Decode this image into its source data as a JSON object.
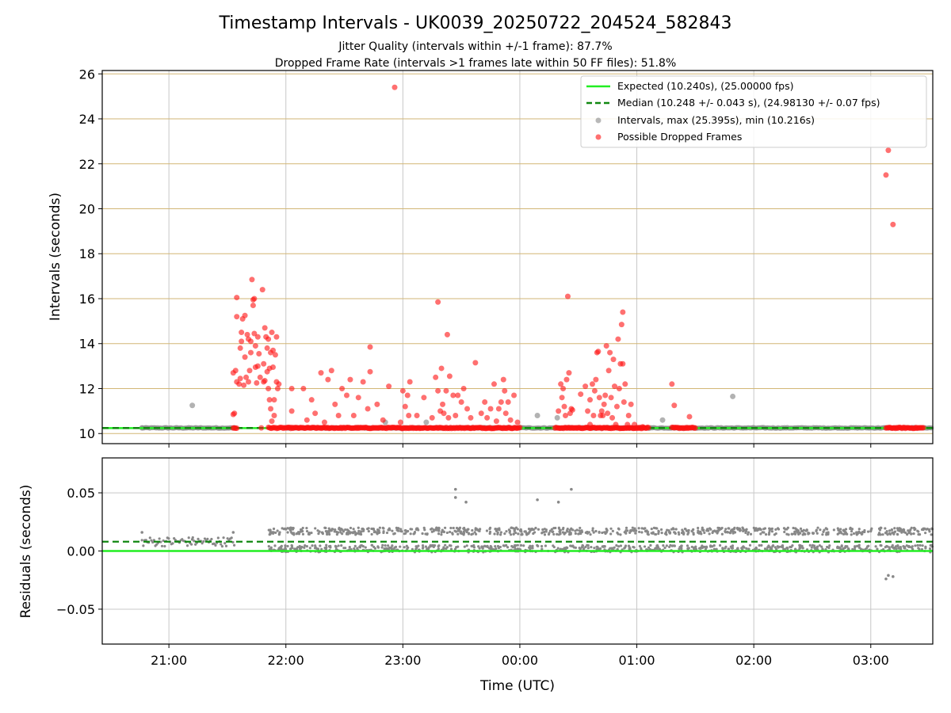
{
  "title": "Timestamp Intervals - UK0039_20250722_204524_582843",
  "subtitle_1": "Jitter Quality (intervals within +/-1 frame): 87.7%",
  "subtitle_2": "Dropped Frame Rate (intervals >1 frames late within 50 FF files): 51.8%",
  "colors": {
    "expected": "#22ee22",
    "median": "#118811",
    "intervals": "#888888",
    "dropped": "#ff1111",
    "hgrid_top": "#d2b675",
    "grid": "#c8c8c8"
  },
  "chart_data": [
    {
      "type": "scatter",
      "panel": "intervals",
      "xlabel": "",
      "ylabel": "Intervals (seconds)",
      "xlim_hours": [
        20.43,
        27.53
      ],
      "ylim": [
        9.55,
        26.15
      ],
      "yticks": [
        10,
        12,
        14,
        16,
        18,
        20,
        22,
        24,
        26
      ],
      "grid": "horizontal gold lines, vertical gray lines",
      "legend_placement": "top-right",
      "expected_value": 10.24,
      "median_value": 10.248,
      "legend": [
        "Expected (10.240s), (25.00000 fps)",
        "Median (10.248 +/- 0.043 s), (24.98130 +/- 0.07 fps)",
        "Intervals, max (25.395s), min (10.216s)",
        "Possible Dropped Frames"
      ],
      "series": [
        {
          "name": "Intervals, max (25.395s), min (10.216s)",
          "baseline_band": [
            [
              20.77,
              21.57
            ],
            [
              22.0,
              27.53
            ]
          ],
          "baseline_value": 10.25,
          "points": [
            [
              20.77,
              10.25
            ],
            [
              21.2,
              11.25
            ],
            [
              22.85,
              10.5
            ],
            [
              23.2,
              10.5
            ],
            [
              24.15,
              10.8
            ],
            [
              24.32,
              10.7
            ],
            [
              25.22,
              10.6
            ],
            [
              25.82,
              11.65
            ]
          ]
        },
        {
          "name": "Possible Dropped Frames",
          "band_ranges": [
            [
              21.55,
              21.58
            ],
            [
              21.85,
              24.0
            ],
            [
              24.3,
              25.1
            ],
            [
              25.3,
              25.5
            ],
            [
              27.13,
              27.45
            ]
          ],
          "band_value": 10.25,
          "points": [
            [
              21.55,
              10.85
            ],
            [
              21.56,
              10.9
            ],
            [
              21.55,
              12.7
            ],
            [
              21.57,
              12.8
            ],
            [
              21.58,
              12.3
            ],
            [
              21.58,
              15.2
            ],
            [
              21.58,
              16.05
            ],
            [
              21.6,
              12.2
            ],
            [
              21.61,
              12.45
            ],
            [
              21.61,
              13.8
            ],
            [
              21.62,
              14.1
            ],
            [
              21.62,
              14.5
            ],
            [
              21.63,
              15.1
            ],
            [
              21.64,
              12.15
            ],
            [
              21.65,
              13.4
            ],
            [
              21.65,
              15.25
            ],
            [
              21.66,
              12.5
            ],
            [
              21.67,
              14.4
            ],
            [
              21.68,
              14.2
            ],
            [
              21.68,
              12.3
            ],
            [
              21.69,
              12.8
            ],
            [
              21.7,
              14.1
            ],
            [
              21.7,
              13.6
            ],
            [
              21.71,
              16.85
            ],
            [
              21.72,
              15.7
            ],
            [
              21.72,
              15.95
            ],
            [
              21.73,
              16.0
            ],
            [
              21.73,
              14.45
            ],
            [
              21.74,
              13.9
            ],
            [
              21.74,
              12.95
            ],
            [
              21.75,
              12.25
            ],
            [
              21.76,
              13.0
            ],
            [
              21.76,
              14.3
            ],
            [
              21.77,
              13.55
            ],
            [
              21.78,
              12.5
            ],
            [
              21.79,
              10.25
            ],
            [
              21.8,
              16.4
            ],
            [
              21.81,
              12.3
            ],
            [
              21.81,
              13.1
            ],
            [
              21.82,
              14.7
            ],
            [
              21.82,
              12.35
            ],
            [
              21.83,
              14.3
            ],
            [
              21.84,
              13.8
            ],
            [
              21.84,
              12.75
            ],
            [
              21.85,
              14.2
            ],
            [
              21.85,
              12.0
            ],
            [
              21.86,
              11.5
            ],
            [
              21.86,
              12.9
            ],
            [
              21.87,
              13.6
            ],
            [
              21.87,
              11.1
            ],
            [
              21.88,
              10.55
            ],
            [
              21.88,
              14.5
            ],
            [
              21.89,
              13.7
            ],
            [
              21.89,
              12.95
            ],
            [
              21.9,
              11.5
            ],
            [
              21.9,
              10.8
            ],
            [
              21.91,
              13.5
            ],
            [
              21.92,
              12.3
            ],
            [
              21.92,
              14.3
            ],
            [
              21.93,
              12.0
            ],
            [
              21.94,
              12.2
            ],
            [
              22.05,
              11.0
            ],
            [
              22.05,
              12.0
            ],
            [
              22.15,
              12.0
            ],
            [
              22.18,
              10.6
            ],
            [
              22.22,
              11.5
            ],
            [
              22.25,
              10.9
            ],
            [
              22.3,
              12.7
            ],
            [
              22.33,
              10.5
            ],
            [
              22.36,
              12.4
            ],
            [
              22.39,
              12.8
            ],
            [
              22.42,
              11.3
            ],
            [
              22.45,
              10.8
            ],
            [
              22.48,
              12.0
            ],
            [
              22.52,
              11.7
            ],
            [
              22.55,
              12.4
            ],
            [
              22.58,
              10.8
            ],
            [
              22.62,
              11.6
            ],
            [
              22.66,
              12.3
            ],
            [
              22.7,
              11.1
            ],
            [
              22.72,
              12.75
            ],
            [
              22.72,
              13.85
            ],
            [
              22.78,
              11.3
            ],
            [
              22.83,
              10.6
            ],
            [
              22.88,
              12.1
            ],
            [
              22.93,
              25.4
            ],
            [
              22.98,
              10.5
            ],
            [
              23.0,
              11.9
            ],
            [
              23.02,
              11.2
            ],
            [
              23.05,
              10.8
            ],
            [
              23.04,
              11.7
            ],
            [
              23.06,
              12.3
            ],
            [
              23.12,
              10.8
            ],
            [
              23.18,
              11.6
            ],
            [
              23.25,
              10.7
            ],
            [
              23.28,
              12.5
            ],
            [
              23.3,
              15.85
            ],
            [
              23.3,
              11.9
            ],
            [
              23.32,
              11.0
            ],
            [
              23.33,
              12.9
            ],
            [
              23.34,
              11.3
            ],
            [
              23.35,
              10.9
            ],
            [
              23.37,
              11.9
            ],
            [
              23.38,
              14.4
            ],
            [
              23.39,
              10.7
            ],
            [
              23.4,
              12.55
            ],
            [
              23.43,
              11.7
            ],
            [
              23.45,
              10.8
            ],
            [
              23.47,
              11.7
            ],
            [
              23.5,
              11.4
            ],
            [
              23.52,
              12.0
            ],
            [
              23.55,
              11.1
            ],
            [
              23.58,
              10.7
            ],
            [
              23.62,
              13.15
            ],
            [
              23.67,
              10.9
            ],
            [
              23.7,
              11.4
            ],
            [
              23.72,
              10.7
            ],
            [
              23.75,
              11.1
            ],
            [
              23.78,
              12.2
            ],
            [
              23.8,
              10.55
            ],
            [
              23.82,
              11.1
            ],
            [
              23.84,
              11.4
            ],
            [
              23.86,
              12.4
            ],
            [
              23.87,
              11.9
            ],
            [
              23.88,
              10.9
            ],
            [
              23.9,
              11.4
            ],
            [
              23.92,
              10.6
            ],
            [
              23.95,
              11.7
            ],
            [
              23.98,
              10.5
            ],
            [
              24.33,
              11.0
            ],
            [
              24.35,
              12.2
            ],
            [
              24.36,
              11.6
            ],
            [
              24.37,
              12.0
            ],
            [
              24.38,
              11.2
            ],
            [
              24.39,
              10.8
            ],
            [
              24.4,
              12.4
            ],
            [
              24.41,
              16.1
            ],
            [
              24.42,
              12.7
            ],
            [
              24.43,
              10.9
            ],
            [
              24.44,
              11.1
            ],
            [
              24.45,
              11.05
            ],
            [
              24.52,
              11.75
            ],
            [
              24.56,
              12.1
            ],
            [
              24.58,
              11.0
            ],
            [
              24.6,
              11.5
            ],
            [
              24.6,
              10.4
            ],
            [
              24.62,
              12.2
            ],
            [
              24.63,
              10.8
            ],
            [
              24.64,
              11.9
            ],
            [
              24.65,
              12.4
            ],
            [
              24.66,
              13.6
            ],
            [
              24.67,
              13.65
            ],
            [
              24.68,
              11.6
            ],
            [
              24.69,
              10.8
            ],
            [
              24.7,
              11.0
            ],
            [
              24.71,
              10.8
            ],
            [
              24.72,
              11.3
            ],
            [
              24.73,
              11.7
            ],
            [
              24.74,
              13.9
            ],
            [
              24.75,
              10.9
            ],
            [
              24.76,
              12.8
            ],
            [
              24.77,
              13.6
            ],
            [
              24.78,
              11.6
            ],
            [
              24.79,
              10.7
            ],
            [
              24.8,
              13.3
            ],
            [
              24.81,
              12.1
            ],
            [
              24.82,
              10.4
            ],
            [
              24.83,
              11.2
            ],
            [
              24.84,
              14.2
            ],
            [
              24.85,
              12.0
            ],
            [
              24.86,
              13.1
            ],
            [
              24.87,
              14.85
            ],
            [
              24.88,
              15.4
            ],
            [
              24.88,
              13.1
            ],
            [
              24.89,
              11.4
            ],
            [
              24.9,
              12.2
            ],
            [
              24.92,
              10.4
            ],
            [
              24.93,
              10.8
            ],
            [
              24.95,
              11.3
            ],
            [
              24.98,
              10.4
            ],
            [
              25.05,
              10.3
            ],
            [
              25.3,
              12.2
            ],
            [
              25.32,
              11.25
            ],
            [
              25.45,
              10.75
            ],
            [
              27.13,
              21.5
            ],
            [
              27.15,
              22.6
            ],
            [
              27.19,
              19.3
            ]
          ]
        }
      ]
    },
    {
      "type": "scatter",
      "panel": "residuals",
      "xlabel": "Time (UTC)",
      "ylabel": "Residuals (seconds)",
      "xlim_hours": [
        20.43,
        27.53
      ],
      "ylim": [
        -0.08,
        0.08
      ],
      "yticks": [
        0.05,
        0.0,
        -0.05
      ],
      "ytick_labels": [
        "0.05",
        "0.00",
        "−0.05"
      ],
      "xtick_hours": [
        21,
        22,
        23,
        24,
        25,
        26,
        27
      ],
      "xtick_labels": [
        "21:00",
        "22:00",
        "23:00",
        "00:00",
        "01:00",
        "02:00",
        "03:00"
      ],
      "grid": "on",
      "expected_value": 0.0,
      "median_value": 0.008,
      "series": [
        {
          "name": "Residuals",
          "cluster_ranges": [
            [
              20.77,
              21.57
            ],
            [
              21.85,
              27.53
            ]
          ],
          "cluster_values": [
            0.002,
            0.017
          ],
          "points": [
            [
              20.77,
              0.016
            ],
            [
              21.2,
              0.01
            ],
            [
              21.55,
              0.016
            ],
            [
              23.45,
              0.053
            ],
            [
              23.45,
              0.046
            ],
            [
              23.54,
              0.042
            ],
            [
              24.15,
              0.044
            ],
            [
              24.33,
              0.042
            ],
            [
              24.44,
              0.053
            ],
            [
              27.13,
              -0.024
            ],
            [
              27.15,
              -0.021
            ],
            [
              27.19,
              -0.022
            ]
          ]
        }
      ]
    }
  ]
}
